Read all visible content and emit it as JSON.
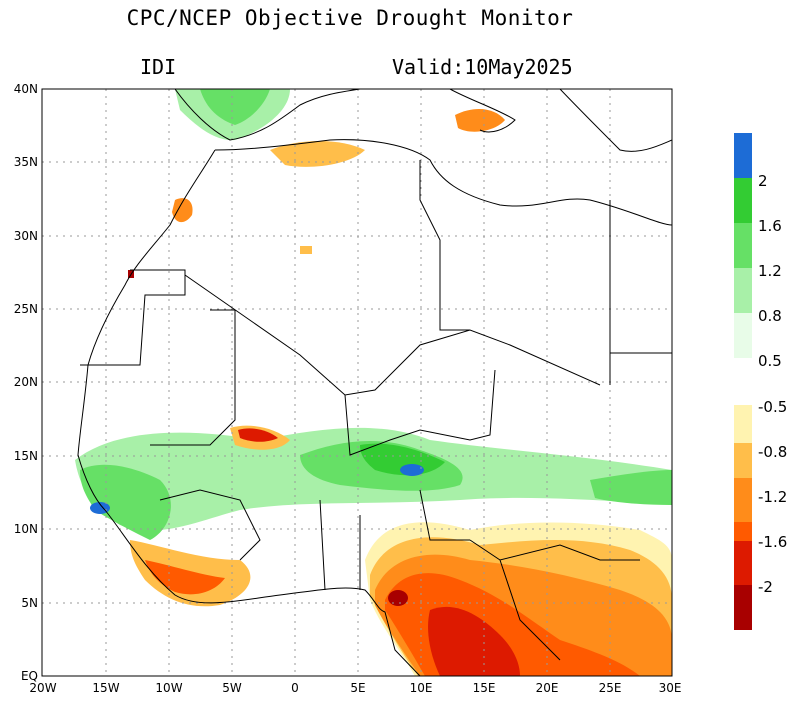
{
  "title": "CPC/NCEP Objective Drought Monitor",
  "index_label": "IDI",
  "valid_label": "Valid:10May2025",
  "axes": {
    "lat_labels": [
      "40N",
      "35N",
      "30N",
      "25N",
      "20N",
      "15N",
      "10N",
      "5N",
      "EQ"
    ],
    "lon_labels": [
      "20W",
      "15W",
      "10W",
      "5W",
      "0",
      "5E",
      "10E",
      "15E",
      "20E",
      "25E",
      "30E"
    ]
  },
  "legend_wet": {
    "colors": [
      "#1d6cd6",
      "#33cc33",
      "#66e066",
      "#a8f0a8",
      "#e8fce8"
    ],
    "labels": [
      "2",
      "1.6",
      "1.2",
      "0.8",
      "0.5"
    ]
  },
  "legend_dry": {
    "colors": [
      "#fff3b0",
      "#ffbe4a",
      "#ff8c1a",
      "#ff5a00",
      "#dd1a00",
      "#a80000"
    ],
    "labels": [
      "-0.5",
      "-0.8",
      "-1.2",
      "-1.6",
      "-2"
    ]
  }
}
